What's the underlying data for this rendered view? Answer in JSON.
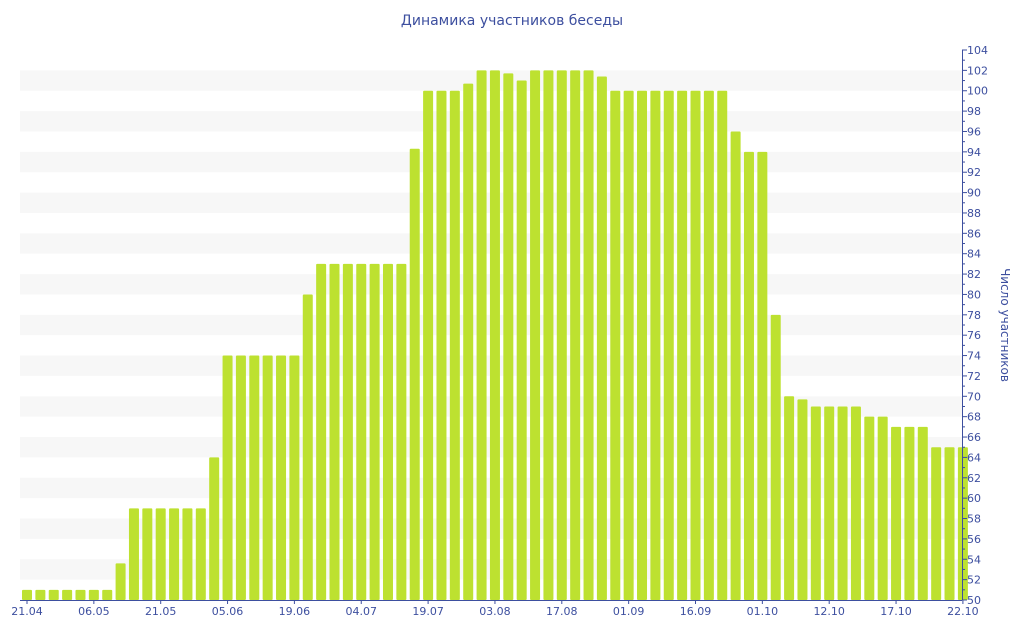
{
  "chart_data": {
    "type": "bar",
    "title": "Динамика участников беседы",
    "xlabel": "",
    "ylabel": "Число участников",
    "ylim": [
      50,
      104
    ],
    "ytick_step": 2,
    "x_tick_labels": [
      "21.04",
      "06.05",
      "21.05",
      "05.06",
      "19.06",
      "04.07",
      "19.07",
      "03.08",
      "17.08",
      "01.09",
      "16.09",
      "01.10",
      "12.10",
      "17.10",
      "22.10"
    ],
    "x_tick_every": 5,
    "values": [
      51,
      51,
      51,
      51,
      51,
      51,
      51,
      53.6,
      59,
      59,
      59,
      59,
      59,
      59,
      64,
      74,
      74,
      74,
      74,
      74,
      74,
      80,
      83,
      83,
      83,
      83,
      83,
      83,
      83,
      94.3,
      100,
      100,
      100,
      100.7,
      102,
      102,
      101.7,
      101,
      102,
      102,
      102,
      102,
      102,
      101.4,
      100,
      100,
      100,
      100,
      100,
      100,
      100,
      100,
      100,
      96,
      94,
      94,
      78,
      70,
      69.7,
      69,
      69,
      69,
      69,
      68,
      68,
      67,
      67,
      67,
      65,
      65,
      65
    ],
    "colors": {
      "bar": "#bde130",
      "axis": "#3d4f9f",
      "band": "#f7f7f7"
    }
  }
}
